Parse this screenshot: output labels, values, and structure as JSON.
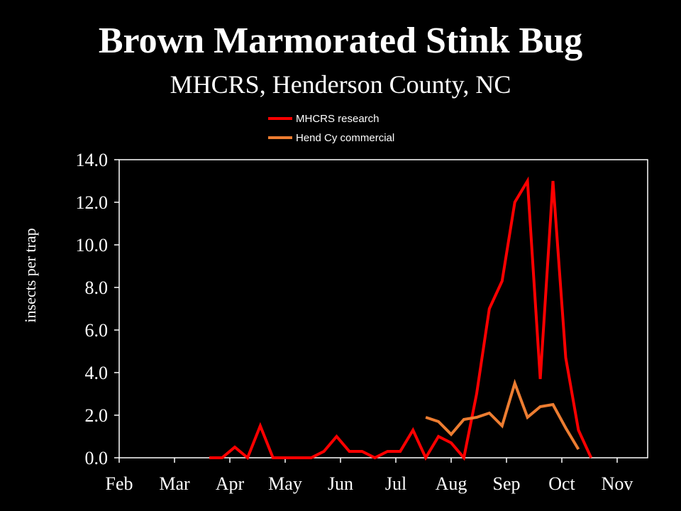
{
  "chart_data": {
    "type": "line",
    "title": "Brown Marmorated Stink Bug",
    "subtitle": "MHCRS, Henderson County, NC",
    "ylabel": "insects per trap",
    "xlabel": "",
    "ylim": [
      0,
      14
    ],
    "xlim": [
      0,
      9.5
    ],
    "y_ticks": [
      "0.0",
      "2.0",
      "4.0",
      "6.0",
      "8.0",
      "10.0",
      "12.0",
      "14.0"
    ],
    "x_ticks": [
      "Feb",
      "Mar",
      "Apr",
      "May",
      "Jun",
      "Jul",
      "Aug",
      "Sep",
      "Oct",
      "Nov"
    ],
    "legend_position": "top-center",
    "grid": false,
    "series": [
      {
        "name": "MHCRS research",
        "color": "#ff0000",
        "points": [
          [
            1.63,
            0.0
          ],
          [
            1.86,
            0.0
          ],
          [
            2.09,
            0.5
          ],
          [
            2.32,
            0.0
          ],
          [
            2.55,
            1.5
          ],
          [
            2.78,
            0.0
          ],
          [
            3.01,
            0.0
          ],
          [
            3.24,
            0.0
          ],
          [
            3.47,
            0.0
          ],
          [
            3.7,
            0.3
          ],
          [
            3.93,
            1.0
          ],
          [
            4.16,
            0.3
          ],
          [
            4.39,
            0.3
          ],
          [
            4.62,
            0.0
          ],
          [
            4.85,
            0.3
          ],
          [
            5.08,
            0.3
          ],
          [
            5.31,
            1.3
          ],
          [
            5.54,
            0.0
          ],
          [
            5.77,
            1.0
          ],
          [
            6.0,
            0.7
          ],
          [
            6.23,
            0.0
          ],
          [
            6.46,
            3.0
          ],
          [
            6.69,
            7.0
          ],
          [
            6.92,
            8.3
          ],
          [
            7.15,
            12.0
          ],
          [
            7.38,
            13.0
          ],
          [
            7.61,
            3.7
          ],
          [
            7.84,
            13.0
          ],
          [
            8.07,
            4.7
          ],
          [
            8.3,
            1.3
          ],
          [
            8.53,
            0.0
          ]
        ]
      },
      {
        "name": "Hend Cy commercial",
        "color": "#ed7d31",
        "points": [
          [
            5.54,
            1.9
          ],
          [
            5.77,
            1.7
          ],
          [
            6.0,
            1.1
          ],
          [
            6.23,
            1.8
          ],
          [
            6.46,
            1.9
          ],
          [
            6.69,
            2.1
          ],
          [
            6.92,
            1.5
          ],
          [
            7.15,
            3.5
          ],
          [
            7.38,
            1.9
          ],
          [
            7.61,
            2.4
          ],
          [
            7.84,
            2.5
          ],
          [
            8.07,
            1.4
          ],
          [
            8.3,
            0.4
          ]
        ]
      }
    ]
  }
}
